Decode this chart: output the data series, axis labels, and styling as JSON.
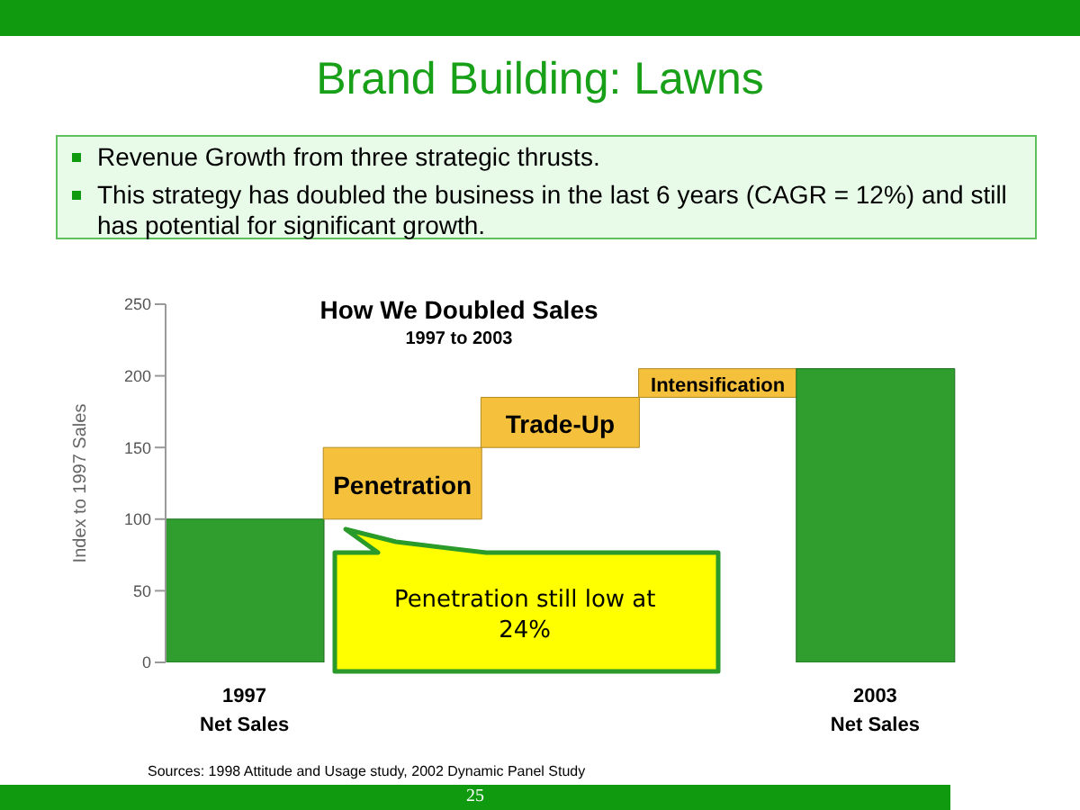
{
  "chart_data": {
    "type": "bar",
    "title": "Brand Building: Lawns",
    "subtitle": "How We Doubled Sales",
    "ylabel": "Index to 1997 Sales",
    "categories": [
      "1997 Net Sales",
      "Penetration",
      "Trade-Up",
      "Intensification",
      "2003 Net Sales"
    ],
    "values": [
      100,
      50,
      35,
      20,
      205
    ],
    "base": [
      0,
      100,
      150,
      185,
      0
    ],
    "colors": [
      "#2f9e2f",
      "#f5c03c",
      "#f5c03c",
      "#f5c03c",
      "#2f9e2f"
    ],
    "ylim": [
      0,
      250
    ],
    "yticks": [
      0,
      50,
      100,
      150,
      200,
      250
    ],
    "grid": false,
    "legend": false,
    "annotations": [
      "Revenue Growth from three strategic thrusts.",
      "This strategy has doubled the business in the last 6 years (CAGR = 12%) and still has potential for significant growth.",
      "1997 to 2003",
      {
        "text": "Penetration still low at 24%",
        "x": "Penetration",
        "y": 100
      },
      "Sources: 1998 Attitude and Usage study, 2002 Dynamic Panel Study",
      "25"
    ]
  }
}
